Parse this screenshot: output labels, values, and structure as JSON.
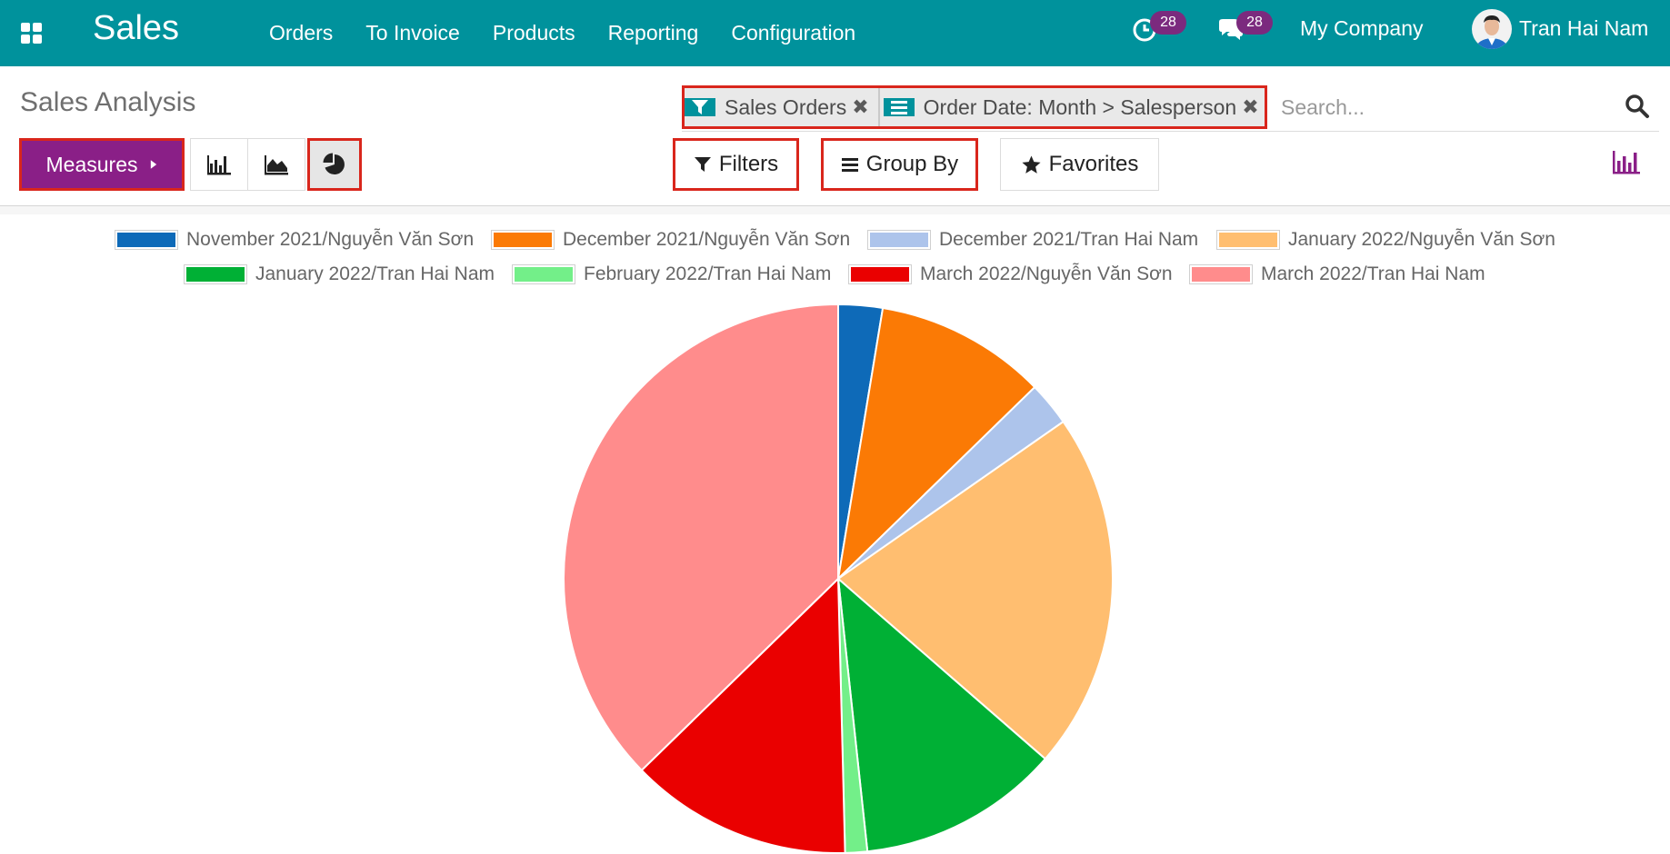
{
  "topbar": {
    "app_name": "Sales",
    "menu": [
      "Orders",
      "To Invoice",
      "Products",
      "Reporting",
      "Configuration"
    ],
    "activity_count": "28",
    "message_count": "28",
    "company": "My Company",
    "user": "Tran Hai Nam",
    "bg_color": "#00929c"
  },
  "page": {
    "title": "Sales Analysis"
  },
  "search": {
    "facets": [
      {
        "icon": "filter-icon",
        "label": "Sales Orders"
      },
      {
        "icon": "group-by-icon",
        "label": "Order Date: Month  > Salesperson"
      }
    ],
    "placeholder": "Search..."
  },
  "controls": {
    "measures": "Measures",
    "views": [
      "bar-chart-icon",
      "line-chart-icon",
      "pie-chart-icon"
    ],
    "active_view": "pie-chart-icon",
    "filters": "Filters",
    "group_by": "Group By",
    "favorites": "Favorites"
  },
  "chart_data": {
    "type": "pie",
    "series": [
      {
        "name": "November 2021/Nguyễn Văn Sơn",
        "value": 2.6,
        "color": "#0e6ab8"
      },
      {
        "name": "December 2021/Nguyễn Văn Sơn",
        "value": 10.1,
        "color": "#fb7a05"
      },
      {
        "name": "December 2021/Tran Hai Nam",
        "value": 2.6,
        "color": "#adc4eb"
      },
      {
        "name": "January 2022/Nguyễn Văn Sơn",
        "value": 21.1,
        "color": "#ffbe70"
      },
      {
        "name": "January 2022/Tran Hai Nam",
        "value": 11.9,
        "color": "#00b035"
      },
      {
        "name": "February 2022/Tran Hai Nam",
        "value": 1.3,
        "color": "#73ef89"
      },
      {
        "name": "March 2022/Nguyễn Văn Sơn",
        "value": 13.1,
        "color": "#ea0000"
      },
      {
        "name": "March 2022/Tran Hai Nam",
        "value": 37.3,
        "color": "#ff8c8c"
      }
    ],
    "legend_position": "top"
  }
}
